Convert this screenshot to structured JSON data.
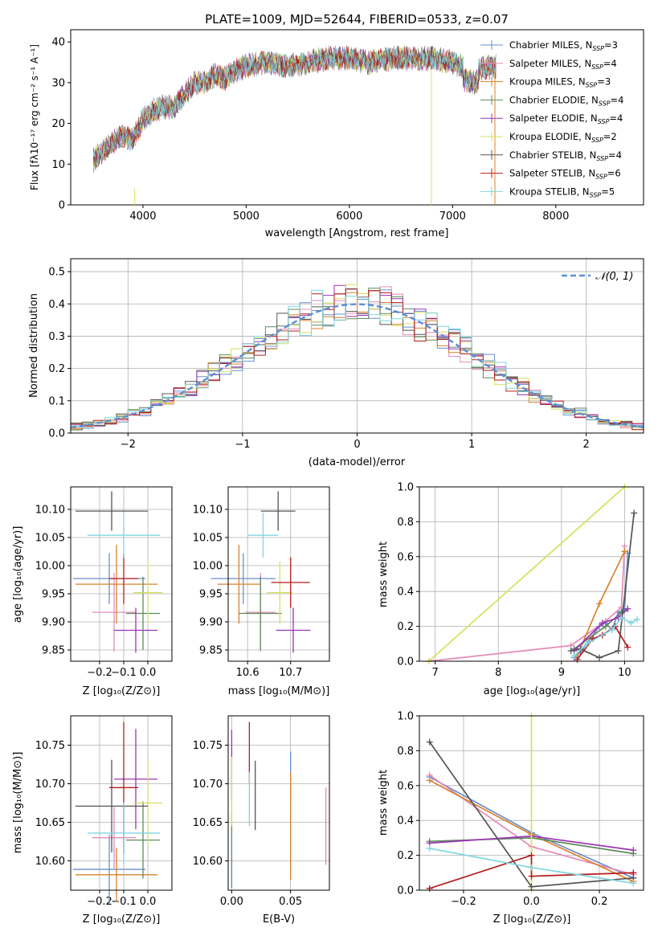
{
  "title": "PLATE=1009, MJD=52644, FIBERID=0533, z=0.07",
  "spectrum_panel": {
    "xlabel": "wavelength [Angstrom, rest frame]",
    "ylabel": "Flux [fλ10⁻¹⁷ erg cm⁻² s⁻¹ A⁻¹]",
    "xlim": [
      3300,
      8850
    ],
    "ylim": [
      0,
      43
    ],
    "xticks": [
      4000,
      5000,
      6000,
      7000,
      8000
    ],
    "yticks": [
      0,
      10,
      20,
      30,
      40
    ]
  },
  "legend": [
    {
      "label": "Chabrier MILES, N",
      "sub": "SSP",
      "tail": "=3",
      "color": "#6a8ecf"
    },
    {
      "label": "Salpeter MILES, N",
      "sub": "SSP",
      "tail": "=4",
      "color": "#e48bb8"
    },
    {
      "label": "Kroupa MILES, N",
      "sub": "SSP",
      "tail": "=3",
      "color": "#d9822b"
    },
    {
      "label": "Chabrier ELODIE, N",
      "sub": "SSP",
      "tail": "=4",
      "color": "#5e8a5a"
    },
    {
      "label": "Salpeter ELODIE, N",
      "sub": "SSP",
      "tail": "=4",
      "color": "#9c33b6"
    },
    {
      "label": "Kroupa ELODIE, N",
      "sub": "SSP",
      "tail": "=2",
      "color": "#d6e15a"
    },
    {
      "label": "Chabrier STELIB, N",
      "sub": "SSP",
      "tail": "=4",
      "color": "#555555"
    },
    {
      "label": "Salpeter STELIB, N",
      "sub": "SSP",
      "tail": "=6",
      "color": "#b51c1c"
    },
    {
      "label": "Kroupa STELIB, N",
      "sub": "SSP",
      "tail": "=5",
      "color": "#7fd6df"
    }
  ],
  "residual_panel": {
    "xlabel": "(data-model)/error",
    "ylabel": "Normed distribution",
    "xlim": [
      -2.5,
      2.5
    ],
    "ylim": [
      0,
      0.54
    ],
    "xticks": [
      -2,
      -1,
      0,
      1,
      2
    ],
    "yticks": [
      0.0,
      0.1,
      0.2,
      0.3,
      0.4,
      0.5
    ],
    "legend_label": "𝒩(0, 1)",
    "normal_color": "#5b8fd6"
  },
  "small_panels": {
    "p1": {
      "xlabel": "Z [log₁₀(Z/Z⊙)]",
      "ylabel": "age  [log₁₀(age/yr)]",
      "xticks": [
        -0.2,
        -0.1,
        0.0
      ],
      "yticks": [
        9.85,
        9.9,
        9.95,
        10.0,
        10.05,
        10.1
      ]
    },
    "p2": {
      "xlabel": "mass [log₁₀(M/M⊙)]",
      "xticks": [
        10.6,
        10.7
      ],
      "yticks": [
        9.85,
        9.9,
        9.95,
        10.0,
        10.05,
        10.1
      ]
    },
    "p3": {
      "xlabel": "age  [log₁₀(age/yr)]",
      "ylabel": "mass weight",
      "xticks": [
        7,
        8,
        9,
        10
      ],
      "yticks": [
        0.0,
        0.2,
        0.4,
        0.6,
        0.8,
        1.0
      ]
    },
    "p4": {
      "xlabel": "Z [log₁₀(Z/Z⊙)]",
      "ylabel": "mass [log₁₀(M/M⊙)]",
      "xticks": [
        -0.2,
        -0.1,
        0.0
      ],
      "yticks": [
        10.6,
        10.65,
        10.7,
        10.75
      ]
    },
    "p5": {
      "xlabel": "E(B-V)",
      "xticks": [
        0.0,
        0.05
      ],
      "yticks": [
        10.6,
        10.65,
        10.7,
        10.75
      ]
    },
    "p6": {
      "xlabel": "Z [log₁₀(Z/Z⊙)]",
      "ylabel": "mass weight",
      "xticks": [
        -0.2,
        0.0,
        0.2
      ],
      "yticks": [
        0.0,
        0.2,
        0.4,
        0.6,
        0.8,
        1.0
      ]
    }
  },
  "chart_data": [
    {
      "type": "line",
      "title": "PLATE=1009, MJD=52644, FIBERID=0533, z=0.07",
      "xlabel": "wavelength [Angstrom, rest frame]",
      "ylabel": "Flux",
      "x": [
        3520,
        3600,
        3700,
        3800,
        3900,
        4000,
        4100,
        4200,
        4300,
        4400,
        4500,
        4600,
        4700,
        4800,
        4900,
        5000,
        5200,
        5400,
        5600,
        5800,
        6000,
        6200,
        6400,
        6600,
        6800,
        7000,
        7200,
        7400
      ],
      "series": [
        {
          "values": [
            11,
            13,
            15,
            17,
            16,
            21,
            23,
            24,
            24,
            27,
            30,
            30,
            32,
            31,
            33,
            34,
            35,
            34,
            35,
            36,
            36,
            35,
            36,
            36,
            36,
            35,
            33,
            34
          ]
        }
      ],
      "ylim": [
        0,
        43
      ],
      "xlim": [
        3300,
        8850
      ]
    },
    {
      "type": "bar",
      "xlabel": "(data-model)/error",
      "ylabel": "Normed distribution",
      "bin_width": 0.1,
      "x_range": [
        -2.5,
        2.5
      ],
      "ylim": [
        0,
        0.54
      ]
    },
    {
      "type": "scatter",
      "xlabel": "Z [log10(Z/Zsun)]",
      "ylabel": "age [log10(age/yr)]",
      "xlim": [
        -0.32,
        0.1
      ],
      "ylim": [
        9.83,
        10.14
      ],
      "points": [
        {
          "x": -0.16,
          "y": 9.977,
          "xerr": 0.15,
          "yerr": 0.045,
          "color": "#6a8ecf"
        },
        {
          "x": -0.14,
          "y": 9.917,
          "xerr": 0.09,
          "yerr": 0.07,
          "color": "#e48bb8"
        },
        {
          "x": -0.13,
          "y": 9.967,
          "xerr": 0.17,
          "yerr": 0.07,
          "color": "#d9822b"
        },
        {
          "x": -0.02,
          "y": 9.915,
          "xerr": 0.07,
          "yerr": 0.065,
          "color": "#5e8a5a"
        },
        {
          "x": -0.05,
          "y": 9.885,
          "xerr": 0.09,
          "yerr": 0.04,
          "color": "#9c33b6"
        },
        {
          "x": 0.0,
          "y": 9.952,
          "xerr": 0.06,
          "yerr": 0.055,
          "color": "#d6e15a"
        },
        {
          "x": -0.15,
          "y": 10.097,
          "xerr": 0.15,
          "yerr": 0.035,
          "color": "#555555"
        },
        {
          "x": -0.1,
          "y": 9.977,
          "xerr": 0.06,
          "yerr": 0.045,
          "color": "#b51c1c"
        },
        {
          "x": -0.1,
          "y": 10.054,
          "xerr": 0.15,
          "yerr": 0.04,
          "color": "#7fd6df"
        }
      ]
    },
    {
      "type": "scatter",
      "xlabel": "mass [log10(M/Msun)]",
      "ylabel": "",
      "xlim": [
        10.555,
        10.79
      ],
      "ylim": [
        9.83,
        10.14
      ],
      "points": [
        {
          "x": 10.59,
          "y": 9.977,
          "xerr": 0.075,
          "yerr": 0.045,
          "color": "#6a8ecf"
        },
        {
          "x": 10.63,
          "y": 9.917,
          "xerr": 0.035,
          "yerr": 0.07,
          "color": "#e48bb8"
        },
        {
          "x": 10.58,
          "y": 9.967,
          "xerr": 0.05,
          "yerr": 0.07,
          "color": "#d9822b"
        },
        {
          "x": 10.63,
          "y": 9.915,
          "xerr": 0.05,
          "yerr": 0.065,
          "color": "#5e8a5a"
        },
        {
          "x": 10.706,
          "y": 9.885,
          "xerr": 0.04,
          "yerr": 0.04,
          "color": "#9c33b6"
        },
        {
          "x": 10.675,
          "y": 9.952,
          "xerr": 0.03,
          "yerr": 0.055,
          "color": "#d6e15a"
        },
        {
          "x": 10.671,
          "y": 10.097,
          "xerr": 0.04,
          "yerr": 0.035,
          "color": "#555555"
        },
        {
          "x": 10.7,
          "y": 9.97,
          "xerr": 0.045,
          "yerr": 0.045,
          "color": "#b51c1c"
        },
        {
          "x": 10.636,
          "y": 10.054,
          "xerr": 0.035,
          "yerr": 0.04,
          "color": "#7fd6df"
        }
      ]
    },
    {
      "type": "line",
      "xlabel": "age [log10(age/yr)]",
      "ylabel": "mass weight",
      "xlim": [
        6.75,
        10.3
      ],
      "ylim": [
        0,
        1.0
      ],
      "series": [
        {
          "color": "#6a8ecf",
          "x": [
            9.2,
            9.3,
            9.6,
            9.7,
            9.8,
            9.9,
            10.0,
            10.05
          ],
          "y": [
            0.02,
            0.05,
            0.2,
            0.22,
            0.18,
            0.28,
            0.3,
            0.62
          ]
        },
        {
          "color": "#e48bb8",
          "x": [
            6.9,
            9.15,
            9.7,
            9.95,
            10.0
          ],
          "y": [
            0.0,
            0.09,
            0.23,
            0.31,
            0.66
          ]
        },
        {
          "color": "#d9822b",
          "x": [
            9.25,
            9.6,
            10.0
          ],
          "y": [
            0.03,
            0.33,
            0.63
          ]
        },
        {
          "color": "#5e8a5a",
          "x": [
            9.2,
            9.7,
            9.95,
            10.05
          ],
          "y": [
            0.07,
            0.2,
            0.28,
            0.3
          ]
        },
        {
          "color": "#9c33b6",
          "x": [
            9.2,
            9.65,
            9.9,
            10.05
          ],
          "y": [
            0.06,
            0.22,
            0.25,
            0.3
          ]
        },
        {
          "color": "#d6e15a",
          "x": [
            6.9,
            10.0
          ],
          "y": [
            0.0,
            1.0
          ]
        },
        {
          "color": "#555555",
          "x": [
            9.15,
            9.3,
            9.6,
            9.9,
            10.15
          ],
          "y": [
            0.06,
            0.07,
            0.02,
            0.06,
            0.85
          ]
        },
        {
          "color": "#b51c1c",
          "x": [
            9.25,
            9.5,
            9.65,
            9.85,
            10.05
          ],
          "y": [
            0.01,
            0.13,
            0.15,
            0.2,
            0.08
          ]
        },
        {
          "color": "#7fd6df",
          "x": [
            9.2,
            9.4,
            9.8,
            9.95,
            10.1,
            10.2
          ],
          "y": [
            0.03,
            0.1,
            0.18,
            0.25,
            0.22,
            0.24
          ]
        }
      ]
    },
    {
      "type": "scatter",
      "xlabel": "Z [log10(Z/Zsun)]",
      "ylabel": "mass [log10(M/Msun)]",
      "xlim": [
        -0.32,
        0.1
      ],
      "ylim": [
        10.562,
        10.788
      ],
      "points": [
        {
          "x": -0.16,
          "y": 10.589,
          "xerr": 0.15,
          "yerr": 0.045,
          "color": "#6a8ecf"
        },
        {
          "x": -0.14,
          "y": 10.63,
          "xerr": 0.09,
          "yerr": 0.04,
          "color": "#e48bb8"
        },
        {
          "x": -0.13,
          "y": 10.582,
          "xerr": 0.17,
          "yerr": 0.035,
          "color": "#d9822b"
        },
        {
          "x": -0.02,
          "y": 10.627,
          "xerr": 0.07,
          "yerr": 0.05,
          "color": "#5e8a5a"
        },
        {
          "x": -0.05,
          "y": 10.706,
          "xerr": 0.09,
          "yerr": 0.065,
          "color": "#9c33b6"
        },
        {
          "x": 0.0,
          "y": 10.675,
          "xerr": 0.06,
          "yerr": 0.055,
          "color": "#d6e15a"
        },
        {
          "x": -0.15,
          "y": 10.671,
          "xerr": 0.15,
          "yerr": 0.06,
          "color": "#555555"
        },
        {
          "x": -0.1,
          "y": 10.695,
          "xerr": 0.06,
          "yerr": 0.085,
          "color": "#b51c1c"
        },
        {
          "x": -0.1,
          "y": 10.636,
          "xerr": 0.15,
          "yerr": 0.04,
          "color": "#7fd6df"
        }
      ]
    },
    {
      "type": "scatter",
      "xlabel": "E(B-V)",
      "ylabel": "",
      "xlim": [
        -0.003,
        0.083
      ],
      "ylim": [
        10.562,
        10.788
      ],
      "points": [
        {
          "x": 0.05,
          "y": 10.712,
          "yerr": 0.03,
          "color": "#6a8ecf"
        },
        {
          "x": 0.08,
          "y": 10.645,
          "yerr": 0.05,
          "color": "#e48bb8"
        },
        {
          "x": 0.05,
          "y": 10.645,
          "yerr": 0.07,
          "color": "#d9822b"
        },
        {
          "x": 0.0,
          "y": 10.615,
          "yerr": 0.05,
          "color": "#5e8a5a"
        },
        {
          "x": 0.0,
          "y": 10.725,
          "yerr": 0.045,
          "color": "#9c33b6"
        },
        {
          "x": 0.0,
          "y": 10.69,
          "yerr": 0.045,
          "color": "#d6e15a"
        },
        {
          "x": 0.02,
          "y": 10.685,
          "yerr": 0.045,
          "color": "#555555"
        },
        {
          "x": 0.015,
          "y": 10.74,
          "yerr": 0.04,
          "color": "#b51c1c"
        },
        {
          "x": 0.015,
          "y": 10.68,
          "yerr": 0.035,
          "color": "#7fd6df"
        }
      ]
    },
    {
      "type": "line",
      "xlabel": "Z [log10(Z/Zsun)]",
      "ylabel": "mass weight",
      "xlim": [
        -0.33,
        0.33
      ],
      "ylim": [
        0,
        1.0
      ],
      "series": [
        {
          "color": "#6a8ecf",
          "x": [
            -0.3,
            0.0,
            0.3
          ],
          "y": [
            0.65,
            0.33,
            0.07
          ]
        },
        {
          "color": "#e48bb8",
          "x": [
            -0.3,
            0.0,
            0.3
          ],
          "y": [
            0.66,
            0.25,
            0.09
          ]
        },
        {
          "color": "#d9822b",
          "x": [
            -0.3,
            0.0,
            0.3
          ],
          "y": [
            0.63,
            0.32,
            0.05
          ]
        },
        {
          "color": "#5e8a5a",
          "x": [
            -0.3,
            0.0,
            0.3
          ],
          "y": [
            0.28,
            0.3,
            0.21
          ]
        },
        {
          "color": "#9c33b6",
          "x": [
            -0.3,
            0.0,
            0.3
          ],
          "y": [
            0.27,
            0.31,
            0.23
          ]
        },
        {
          "color": "#d6e15a",
          "x": [
            0.0,
            0.0
          ],
          "y": [
            0.0,
            1.0
          ]
        },
        {
          "color": "#555555",
          "x": [
            -0.3,
            0.0,
            0.3
          ],
          "y": [
            0.85,
            0.02,
            0.07
          ]
        },
        {
          "color": "#b51c1c",
          "x": [
            -0.3,
            0.0,
            0.0,
            0.3
          ],
          "y": [
            0.01,
            0.2,
            0.08,
            0.1
          ]
        },
        {
          "color": "#7fd6df",
          "x": [
            -0.3,
            0.0,
            0.3
          ],
          "y": [
            0.24,
            0.13,
            0.04
          ]
        }
      ]
    }
  ]
}
